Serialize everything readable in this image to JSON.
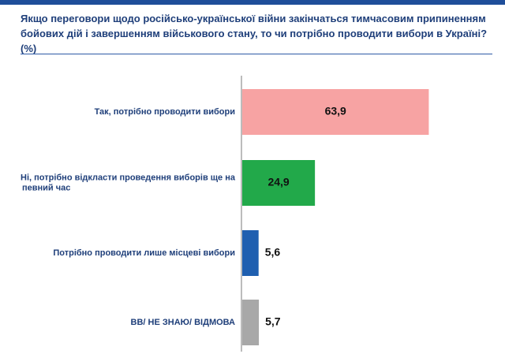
{
  "title": "Якщо переговори щодо російсько-української війни закінчаться тимчасовим припиненням бойових дій і завершенням військового стану, то чи потрібно проводити вибори в Україні? (%)",
  "chart_data": {
    "type": "bar",
    "orientation": "horizontal",
    "title": "Якщо переговори щодо російсько-української війни закінчаться тимчасовим припиненням бойових дій і завершенням військового стану, то чи потрібно проводити вибори в Україні? (%)",
    "categories": [
      [
        "Так, потрібно проводити вибори"
      ],
      [
        "Ні, потрібно відкласти проведення виборів ще на",
        "певний час"
      ],
      [
        "Потрібно проводити лише місцеві вибори"
      ],
      [
        "ВВ/ НЕ ЗНАЮ/ ВІДМОВА"
      ]
    ],
    "values": [
      63.9,
      24.9,
      5.6,
      5.7
    ],
    "value_labels": [
      "63,9",
      "24,9",
      "5,6",
      "5,7"
    ],
    "colors": [
      "#f7a3a3",
      "#22a94a",
      "#1f5fb0",
      "#a8a8a8"
    ],
    "value_label_inside": [
      true,
      true,
      false,
      false
    ],
    "xlim": [
      0,
      100
    ],
    "grid": false,
    "legend": "none"
  }
}
